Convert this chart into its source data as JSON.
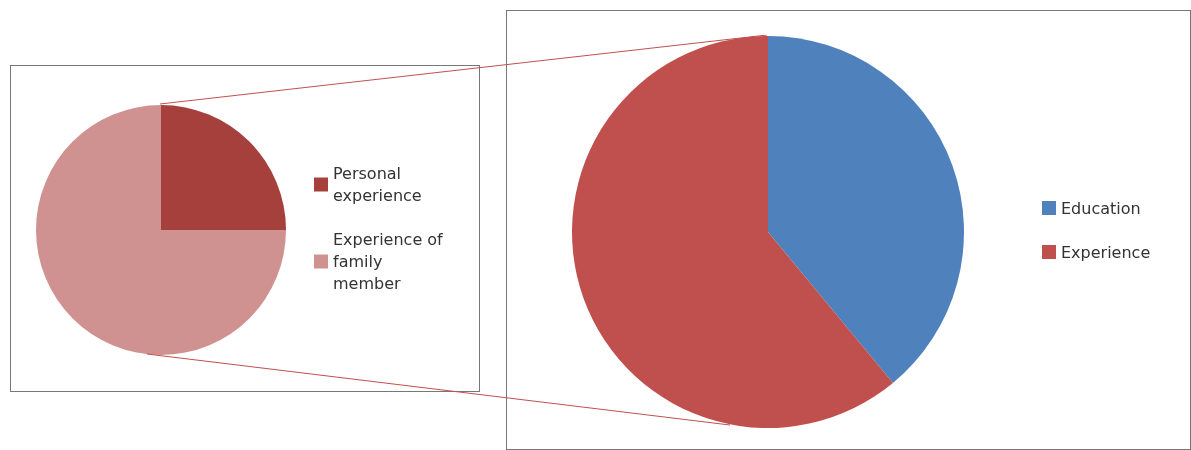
{
  "chart_data": [
    {
      "type": "pie",
      "categories": [
        "Personal experience",
        "Experience of family member"
      ],
      "values": [
        25,
        75
      ],
      "colors": [
        "#a5403c",
        "#d09290"
      ],
      "legend": "right"
    },
    {
      "type": "pie",
      "categories": [
        "Education",
        "Experience"
      ],
      "values": [
        39,
        61
      ],
      "colors": [
        "#4f81bd",
        "#c0504d"
      ],
      "legend": "right"
    }
  ]
}
